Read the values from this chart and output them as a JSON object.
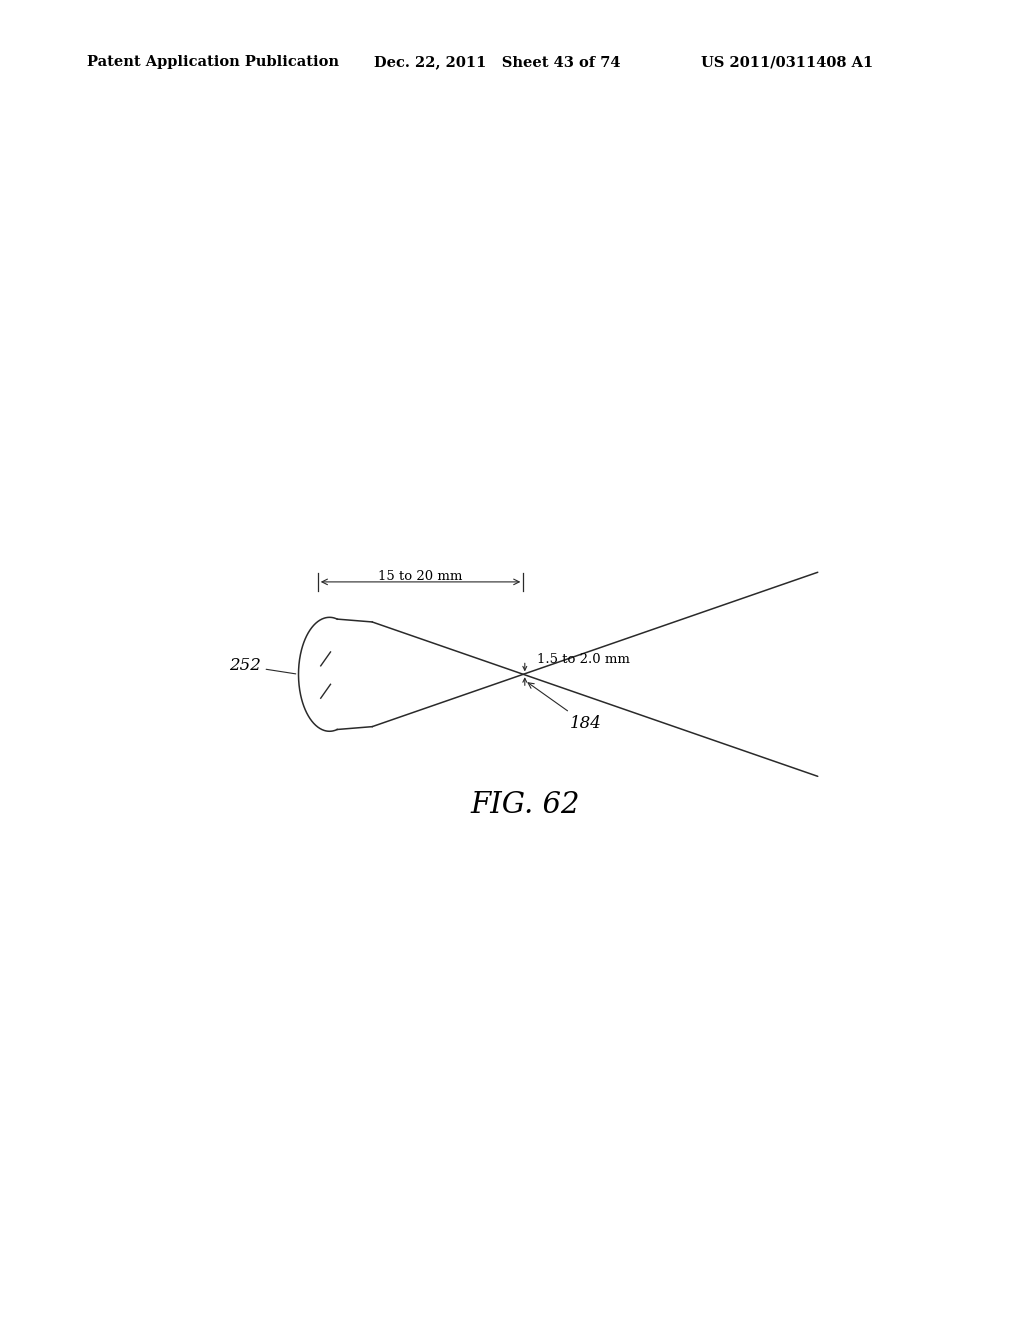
{
  "header_left": "Patent Application Publication",
  "header_mid": "Dec. 22, 2011   Sheet 43 of 74",
  "header_right": "US 2011/0311408 A1",
  "fig_caption": "FIG. 62",
  "label_252": "252",
  "label_184": "184",
  "dim_vertical": "1.5 to 2.0 mm",
  "dim_horizontal": "15 to 20 mm",
  "bg_color": "#ffffff",
  "line_color": "#2a2a2a",
  "text_color": "#000000",
  "header_fontsize": 10.5,
  "caption_fontsize": 21,
  "label_fontsize": 12
}
